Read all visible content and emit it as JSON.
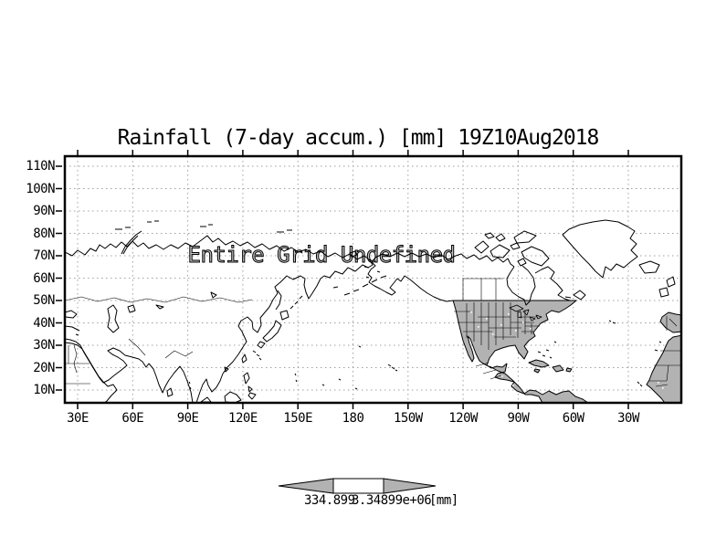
{
  "title": "Rainfall (7-day accum.) [mm] 19Z10Aug2018",
  "overlay_message": "Entire Grid Undefined",
  "axes": {
    "lat_ticks": [
      "110N",
      "100N",
      "90N",
      "80N",
      "70N",
      "60N",
      "50N",
      "40N",
      "30N",
      "20N",
      "10N"
    ],
    "lon_ticks": [
      "30E",
      "60E",
      "90E",
      "120E",
      "150E",
      "180",
      "150W",
      "120W",
      "90W",
      "60W",
      "30W"
    ]
  },
  "colorbar": {
    "min_label": "334.899",
    "max_label": "3.34899e+06",
    "unit_label": "[mm]",
    "arrow_fill": "#b2b2b2"
  },
  "map": {
    "land_shading_fill": "#b2b2b2",
    "coastline_color": "#000000",
    "grid_color": "#a0a0a0",
    "shaded_regions": "North America south of 50N, Central America, Caribbean, northern South America, Iberia, West Africa"
  },
  "chart_data": {
    "type": "map",
    "title": "Rainfall (7-day accum.) [mm] 19Z10Aug2018",
    "variable": "Rainfall (7-day accumulation)",
    "unit": "mm",
    "valid_time_label": "19Z10Aug2018",
    "x_axis": {
      "kind": "longitude",
      "tick_labels": [
        "30E",
        "60E",
        "90E",
        "120E",
        "150E",
        "180",
        "150W",
        "120W",
        "90W",
        "60W",
        "30W"
      ]
    },
    "y_axis": {
      "kind": "latitude",
      "tick_labels": [
        "110N",
        "100N",
        "90N",
        "80N",
        "70N",
        "60N",
        "50N",
        "40N",
        "30N",
        "20N",
        "10N"
      ]
    },
    "grid": "dotted",
    "plotted_field": "none - entire grid undefined",
    "annotation": "Entire Grid Undefined",
    "colorbar": {
      "style": "double-ended arrow",
      "tick_values": [
        334.899,
        3348990
      ],
      "tick_labels": [
        "334.899",
        "3.34899e+06"
      ],
      "unit_label": "[mm]"
    }
  }
}
